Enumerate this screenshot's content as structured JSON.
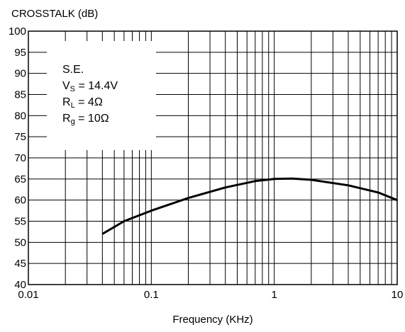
{
  "chart_data": {
    "type": "line",
    "ylabel": "CROSSTALK (dB)",
    "xlabel": "Frequency (KHz)",
    "xscale": "log",
    "grid": true,
    "color": "#000000",
    "xlim": [
      0.01,
      10
    ],
    "xticks": [
      0.01,
      0.1,
      1,
      10
    ],
    "xminor": [
      0.02,
      0.03,
      0.04,
      0.05,
      0.06,
      0.07,
      0.08,
      0.09,
      0.2,
      0.3,
      0.4,
      0.5,
      0.6,
      0.7,
      0.8,
      0.9,
      2,
      3,
      4,
      5,
      6,
      7,
      8,
      9
    ],
    "ylim": [
      40,
      100
    ],
    "yticks": [
      40,
      45,
      50,
      55,
      60,
      65,
      70,
      75,
      80,
      85,
      90,
      95,
      100
    ],
    "annotations": [
      {
        "text": "S.E."
      },
      {
        "symbol": "V",
        "subscript": "S",
        "text": " = 14.4V"
      },
      {
        "symbol": "R",
        "subscript": "L",
        "text": " = 4Ω"
      },
      {
        "symbol": "R",
        "subscript": "g",
        "text": " = 10Ω"
      }
    ],
    "series": [
      {
        "x": [
          0.04,
          0.06,
          0.1,
          0.2,
          0.4,
          0.7,
          1,
          1.4,
          2,
          4,
          7,
          10
        ],
        "values": [
          52,
          55,
          57.5,
          60.5,
          63,
          64.5,
          65,
          65.1,
          64.8,
          63.5,
          61.8,
          60
        ]
      }
    ]
  }
}
